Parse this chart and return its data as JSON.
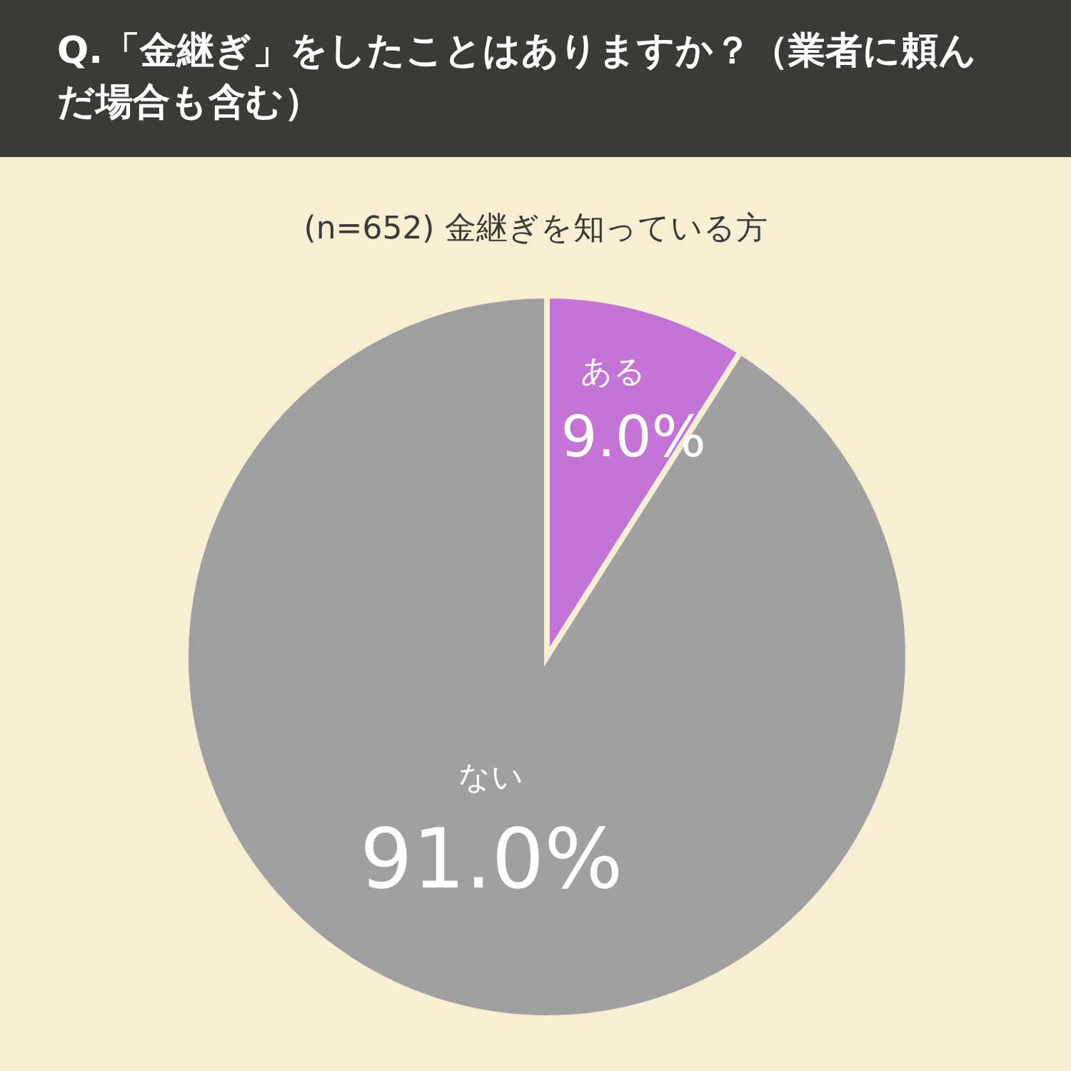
{
  "chart_data": {
    "type": "pie",
    "title": "Q.「金継ぎ」をしたことはありますか？（業者に頼んだ場合も含む）",
    "subtitle": "(n=652) 金継ぎを知っている方",
    "categories": [
      "ある",
      "ない"
    ],
    "values": [
      9.0,
      91.0
    ],
    "colors": [
      "#c474d4",
      "#a0a0a0"
    ],
    "value_labels": [
      "9.0%",
      "91.0%"
    ]
  }
}
